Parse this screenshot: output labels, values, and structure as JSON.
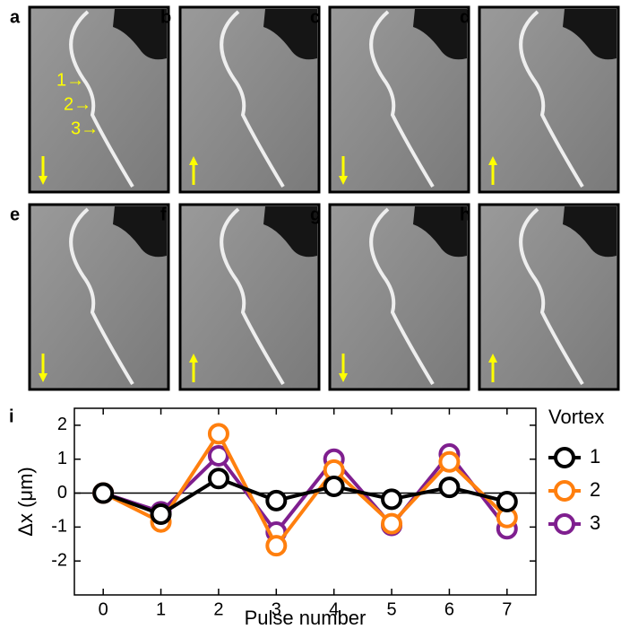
{
  "panels": [
    {
      "label": "a",
      "annotations": [
        "1→",
        "2→",
        "3→"
      ]
    },
    {
      "label": "b"
    },
    {
      "label": "c"
    },
    {
      "label": "d"
    },
    {
      "label": "e"
    },
    {
      "label": "f"
    },
    {
      "label": "g"
    },
    {
      "label": "h"
    }
  ],
  "chart_data": {
    "type": "line",
    "panel_label": "i",
    "x": [
      0,
      1,
      2,
      3,
      4,
      5,
      6,
      7
    ],
    "xlabel": "Pulse number",
    "ylabel": "Δx (μm)",
    "xlim": [
      -0.5,
      7.5
    ],
    "xticks": [
      0,
      1,
      2,
      3,
      4,
      5,
      6,
      7
    ],
    "ylim": [
      -3,
      2.5
    ],
    "yticks": [
      -2,
      -1,
      0,
      1,
      2
    ],
    "legend_title": "Vortex",
    "series": [
      {
        "name": "1",
        "color": "#000000",
        "values": [
          0,
          -0.62,
          0.43,
          -0.22,
          0.2,
          -0.18,
          0.17,
          -0.25
        ]
      },
      {
        "name": "2",
        "color": "#ff7f0e",
        "values": [
          0,
          -0.85,
          1.75,
          -1.55,
          0.68,
          -0.9,
          0.92,
          -0.72
        ]
      },
      {
        "name": "3",
        "color": "#7f1f8f",
        "values": [
          0,
          -0.55,
          1.1,
          -1.15,
          1.0,
          -0.95,
          1.15,
          -1.05
        ]
      }
    ]
  }
}
